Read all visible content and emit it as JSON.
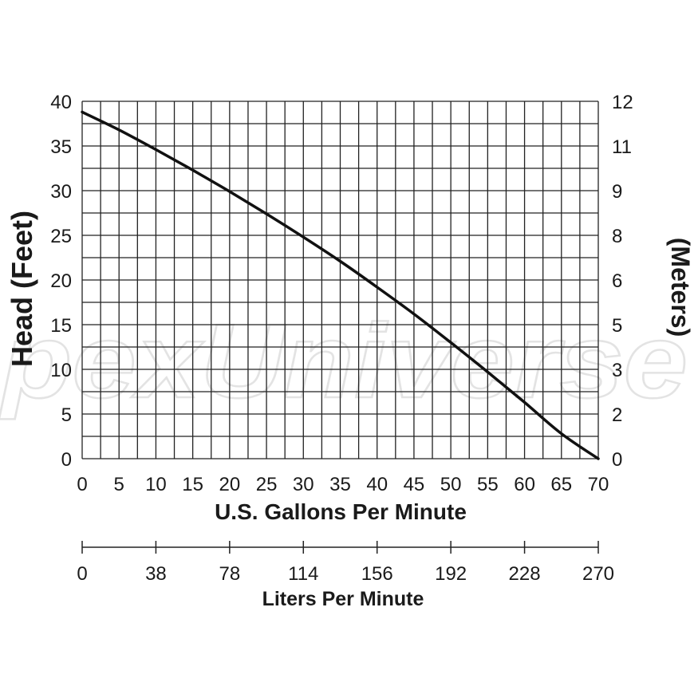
{
  "watermark": "pexUniverse",
  "chart_data": {
    "type": "line",
    "title": "",
    "xlabel": "U.S. Gallons Per Minute",
    "ylabel": "Head (Feet)",
    "y2label": "(Meters)",
    "x2label": "Liters Per Minute",
    "xlim": [
      0,
      70
    ],
    "ylim": [
      0,
      40
    ],
    "grid": true,
    "x_ticks": [
      "0",
      "5",
      "10",
      "15",
      "20",
      "25",
      "30",
      "35",
      "40",
      "45",
      "50",
      "55",
      "60",
      "65",
      "70"
    ],
    "y_ticks": [
      "0",
      "5",
      "10",
      "15",
      "20",
      "25",
      "30",
      "35",
      "40"
    ],
    "y2_ticks": [
      "0",
      "2",
      "3",
      "5",
      "6",
      "8",
      "9",
      "11",
      "12"
    ],
    "x2_ticks": [
      "0",
      "38",
      "78",
      "114",
      "156",
      "192",
      "228",
      "270"
    ],
    "series": [
      {
        "x": [
          0,
          5,
          10,
          15,
          20,
          25,
          30,
          35,
          40,
          45,
          50,
          55,
          60,
          65,
          70
        ],
        "y": [
          38.8,
          36.8,
          34.6,
          32.3,
          29.9,
          27.4,
          24.8,
          22.1,
          19.2,
          16.2,
          13.0,
          9.7,
          6.3,
          2.8,
          0
        ]
      }
    ]
  }
}
